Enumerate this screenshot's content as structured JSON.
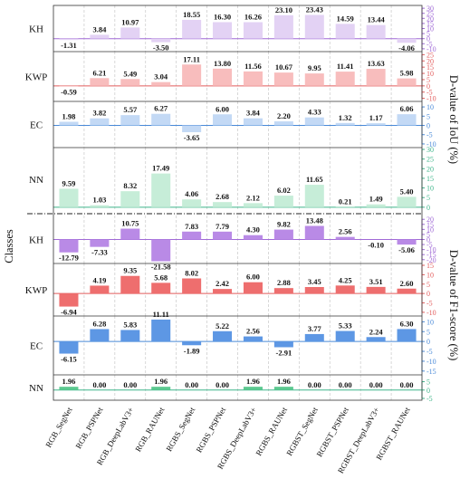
{
  "chart_data": {
    "type": "bar",
    "categories": [
      "RGB_SegNet",
      "RGB_PSPNet",
      "RGB_DeepLabV3+",
      "RGB_RAUNet",
      "RGBS_SegNet",
      "RGBS_PSPNet",
      "RGBS_DeepLabV3+",
      "RGBS_RAUNet",
      "RGBST_SegNet",
      "RGBST_PSPNet",
      "RGBST_DeepLabV3+",
      "RGBST_RAUNet"
    ],
    "xlabel": "",
    "ylabel": "Classes",
    "groups": [
      {
        "axis_title": "D-value of IoU (%)",
        "panels": [
          {
            "class": "KH",
            "color": "#a06ad6",
            "fill": "#e3d2f4",
            "ticks": [
              -10,
              -5,
              0,
              5,
              10,
              15,
              20,
              25,
              30
            ],
            "ylim": [
              -11,
              31
            ],
            "values": [
              -1.31,
              3.84,
              10.97,
              -3.5,
              18.55,
              16.3,
              16.26,
              23.1,
              23.43,
              14.59,
              13.44,
              -4.06
            ],
            "labels": [
              "-1.31",
              "3.84",
              "10.97",
              "-3.50",
              "18.55",
              "16.30",
              "16.26",
              "23.10",
              "23.43",
              "14.59",
              "13.44",
              "-4.06"
            ]
          },
          {
            "class": "KWP",
            "color": "#e25c5c",
            "fill": "#f8bdbd",
            "ticks": [
              -10,
              -5,
              0,
              5,
              10,
              15,
              20,
              25
            ],
            "ylim": [
              -11,
              26
            ],
            "values": [
              -0.59,
              6.21,
              5.49,
              3.04,
              17.11,
              13.8,
              11.56,
              10.67,
              9.95,
              11.41,
              13.63,
              5.98
            ],
            "labels": [
              "-0.59",
              "6.21",
              "5.49",
              "3.04",
              "17.11",
              "13.80",
              "11.56",
              "10.67",
              "9.95",
              "11.41",
              "13.63",
              "5.98"
            ]
          },
          {
            "class": "EC",
            "color": "#4a8ad8",
            "fill": "#c3d9f5",
            "ticks": [
              -10,
              -5,
              0,
              5,
              10
            ],
            "ylim": [
              -11,
              12
            ],
            "values": [
              1.98,
              3.82,
              5.57,
              6.27,
              -3.65,
              6.0,
              3.84,
              2.2,
              4.33,
              1.32,
              1.17,
              6.06
            ],
            "labels": [
              "1.98",
              "3.82",
              "5.57",
              "6.27",
              "-3.65",
              "6.00",
              "3.84",
              "2.20",
              "4.33",
              "1.32",
              "1.17",
              "6.06"
            ]
          },
          {
            "class": "NN",
            "color": "#3fb58a",
            "fill": "#c6edd8",
            "ticks": [
              0,
              5,
              10,
              15,
              20,
              25,
              30
            ],
            "ylim": [
              -1,
              30
            ],
            "values": [
              9.59,
              1.03,
              8.32,
              17.49,
              4.06,
              2.68,
              2.12,
              6.02,
              11.65,
              0.21,
              1.49,
              5.4
            ],
            "labels": [
              "9.59",
              "1.03",
              "8.32",
              "17.49",
              "4.06",
              "2.68",
              "2.12",
              "6.02",
              "11.65",
              "0.21",
              "1.49",
              "5.40"
            ]
          }
        ]
      },
      {
        "axis_title": "D-value of F1-score (%)",
        "panels": [
          {
            "class": "KH",
            "color": "#a06ad6",
            "fill": "#b98ae6",
            "ticks": [
              -20,
              -15,
              -10,
              -5,
              0,
              5,
              10,
              15,
              20
            ],
            "ylim": [
              -22,
              22
            ],
            "values": [
              -12.79,
              -7.33,
              10.75,
              -21.58,
              7.83,
              7.79,
              4.3,
              9.82,
              13.48,
              2.56,
              -0.1,
              -5.06
            ],
            "labels": [
              "-12.79",
              "-7.33",
              "10.75",
              "-21.58",
              "7.83",
              "7.79",
              "4.30",
              "9.82",
              "13.48",
              "2.56",
              "-0.10",
              "-5.06"
            ]
          },
          {
            "class": "KWP",
            "color": "#e25c5c",
            "fill": "#ee6e6e",
            "ticks": [
              -10,
              -5,
              0,
              5,
              10,
              15
            ],
            "ylim": [
              -11,
              15
            ],
            "values": [
              -6.94,
              4.19,
              9.35,
              5.68,
              8.02,
              2.42,
              6.0,
              2.88,
              3.45,
              4.25,
              3.51,
              2.6
            ],
            "labels": [
              "-6.94",
              "4.19",
              "9.35",
              "5.68",
              "8.02",
              "2.42",
              "6.00",
              "2.88",
              "3.45",
              "4.25",
              "3.51",
              "2.60"
            ]
          },
          {
            "class": "EC",
            "color": "#4a8ad8",
            "fill": "#5d97e4",
            "ticks": [
              -15,
              -10,
              -5,
              0,
              5,
              10
            ],
            "ylim": [
              -16,
              12
            ],
            "values": [
              -6.15,
              6.28,
              5.83,
              11.11,
              -1.89,
              5.22,
              2.56,
              -2.91,
              3.77,
              5.33,
              2.24,
              6.3
            ],
            "labels": [
              "-6.15",
              "6.28",
              "5.83",
              "11.11",
              "-1.89",
              "5.22",
              "2.56",
              "-2.91",
              "3.77",
              "5.33",
              "2.24",
              "6.30"
            ]
          },
          {
            "class": "NN",
            "color": "#3fb58a",
            "fill": "#5cc990",
            "ticks": [
              -5,
              0,
              5
            ],
            "ylim": [
              -5,
              8
            ],
            "values": [
              1.96,
              0.0,
              0.0,
              1.96,
              0.0,
              0.0,
              1.96,
              1.96,
              0.0,
              0.0,
              0.0,
              0.0
            ],
            "labels": [
              "1.96",
              "0.00",
              "0.00",
              "1.96",
              "0.00",
              "0.00",
              "1.96",
              "1.96",
              "0.00",
              "0.00",
              "0.00",
              "0.00"
            ]
          }
        ]
      }
    ]
  }
}
